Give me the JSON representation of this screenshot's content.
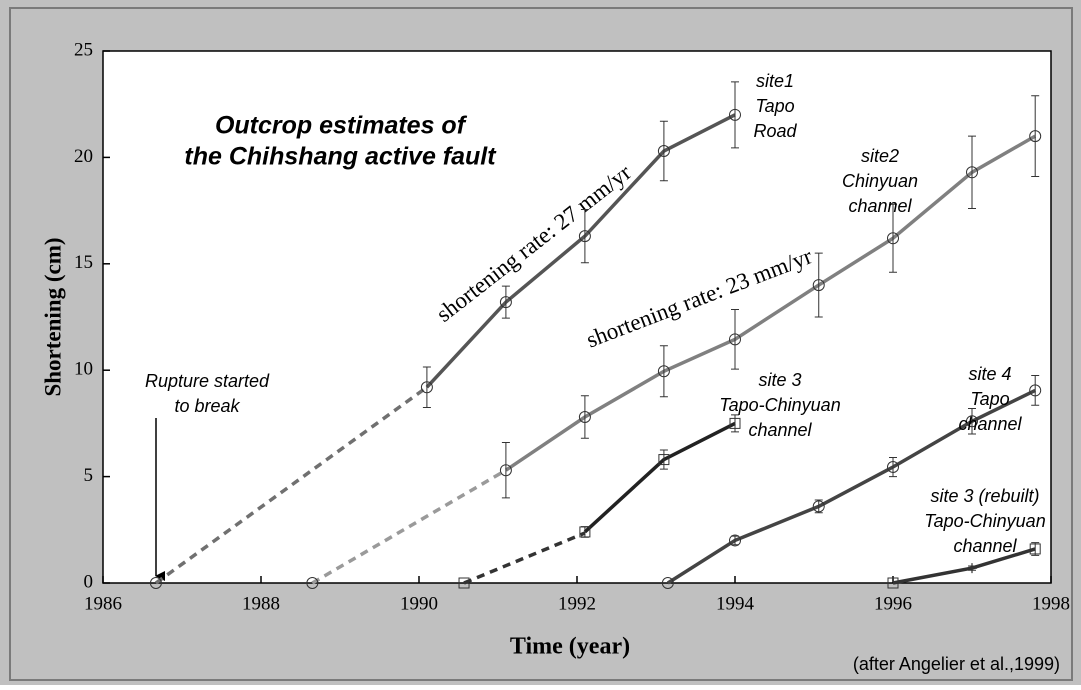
{
  "chart_data": {
    "type": "line",
    "title": [
      "Outcrop estimates of",
      "the Chihshang active fault"
    ],
    "x_label": "Time (year)",
    "y_label": "Shortening (cm)",
    "source": "(after Angelier et al.,1999)",
    "xlim": [
      1986,
      1998
    ],
    "xticks": [
      1986,
      1988,
      1990,
      1992,
      1994,
      1996,
      1998
    ],
    "ylim": [
      0,
      25
    ],
    "yticks": [
      0,
      5,
      10,
      15,
      20,
      25
    ],
    "series": [
      {
        "color": "#707070",
        "dashed": true,
        "marker": "circle",
        "x": [
          1986.67,
          1990.1
        ],
        "values": [
          0,
          9.2
        ]
      },
      {
        "color": "#555555",
        "dashed": false,
        "marker": "circle",
        "x": [
          1990.1,
          1991.1,
          1992.1,
          1993.1,
          1994.0
        ],
        "values": [
          9.2,
          13.2,
          16.3,
          20.3,
          22.0
        ],
        "errors": [
          0.95,
          0.75,
          1.25,
          1.4,
          1.55
        ]
      },
      {
        "color": "#9a9a9a",
        "dashed": true,
        "marker": "circle",
        "x": [
          1988.65,
          1991.1
        ],
        "values": [
          0,
          5.3
        ]
      },
      {
        "color": "#808080",
        "dashed": false,
        "marker": "circle",
        "x": [
          1991.1,
          1992.1,
          1993.1,
          1994.0,
          1995.06,
          1996.0,
          1997.0,
          1997.8
        ],
        "values": [
          5.3,
          7.8,
          9.95,
          11.45,
          14.0,
          16.2,
          19.3,
          21.0
        ],
        "errors": [
          1.3,
          1.0,
          1.2,
          1.4,
          1.5,
          1.6,
          1.7,
          1.9
        ]
      },
      {
        "color": "#333333",
        "dashed": true,
        "marker": "square",
        "x": [
          1990.57,
          1992.1
        ],
        "values": [
          0,
          2.35
        ]
      },
      {
        "color": "#222222",
        "dashed": false,
        "marker": "square",
        "x": [
          1992.1,
          1993.1,
          1994.0
        ],
        "values": [
          2.4,
          5.8,
          7.5
        ],
        "errors": [
          0.25,
          0.45,
          0.4
        ]
      },
      {
        "color": "#444444",
        "dashed": false,
        "marker": "circle",
        "x": [
          1993.15,
          1994.0,
          1995.06,
          1996.0,
          1997.0,
          1997.8
        ],
        "values": [
          0,
          2.0,
          3.6,
          5.45,
          7.6,
          9.05
        ],
        "errors": [
          0,
          0.2,
          0.3,
          0.45,
          0.6,
          0.7
        ]
      },
      {
        "color": "#333333",
        "dashed": false,
        "marker": "square",
        "x": [
          1996.0,
          1997.0,
          1997.8
        ],
        "values": [
          0,
          0.7,
          1.6
        ],
        "errors": [
          0,
          0.1,
          0.3
        ]
      }
    ],
    "annotations": [
      [
        "site1",
        "Tapo",
        "Road"
      ],
      [
        "site2",
        "Chinyuan",
        "channel"
      ],
      [
        "site 3",
        "Tapo-Chinyuan",
        "channel"
      ],
      [
        "site 4",
        "Tapo",
        "channel"
      ],
      [
        "site 3 (rebuilt)",
        "Tapo-Chinyuan",
        "channel"
      ],
      [
        "Rupture started",
        "to break"
      ]
    ],
    "rates": [
      "shortening rate: 27 mm/yr",
      "shortening rate: 23 mm/yr"
    ]
  }
}
